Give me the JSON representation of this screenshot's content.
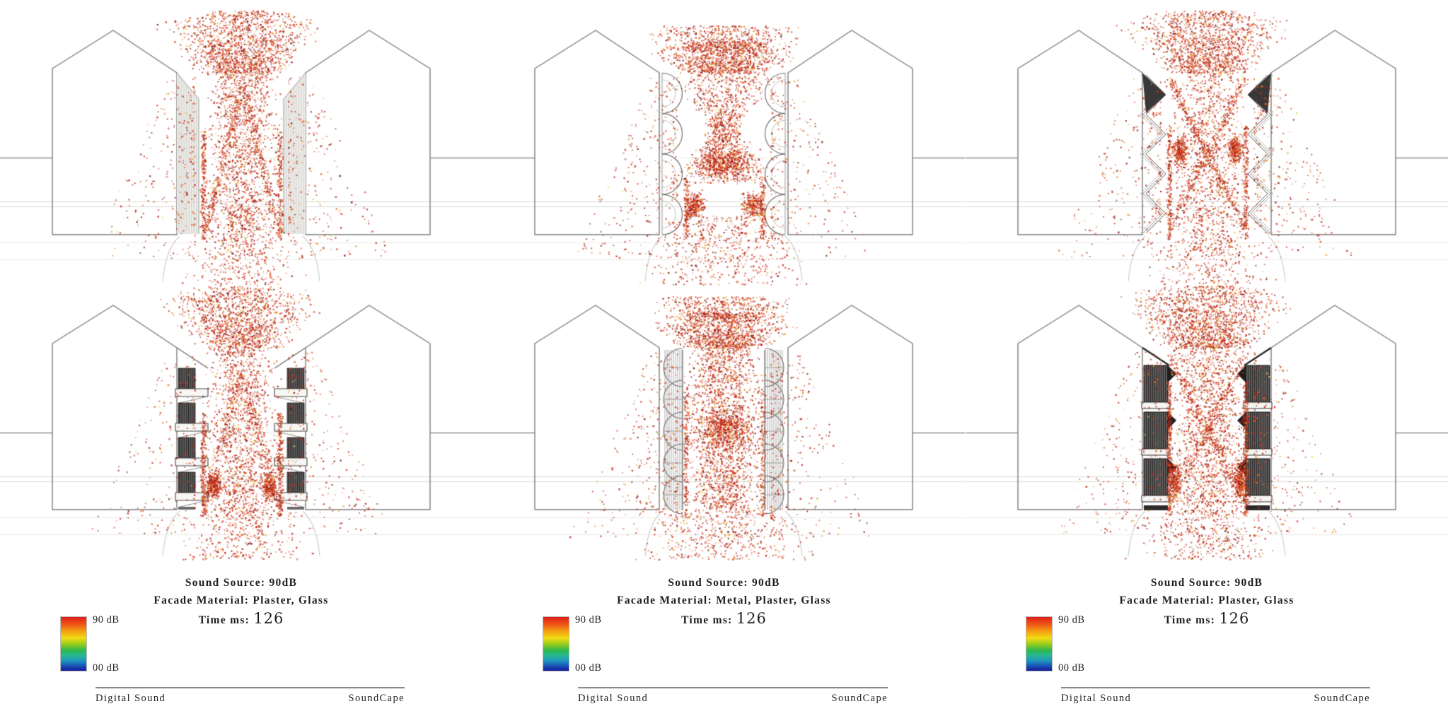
{
  "title": "SoundCape acoustic facade simulation grid",
  "legend_gradient": [
    [
      "#e01f17",
      0
    ],
    [
      "#ee5317",
      13
    ],
    [
      "#f4a112",
      27
    ],
    [
      "#f2dc12",
      39
    ],
    [
      "#93cc1e",
      51
    ],
    [
      "#30b84c",
      62
    ],
    [
      "#28b795",
      72
    ],
    [
      "#1e93c0",
      82
    ],
    [
      "#1a4bb4",
      92
    ],
    [
      "#151d96",
      100
    ]
  ],
  "particle_palette": [
    [
      "#c4261a",
      26
    ],
    [
      "#dd3a1c",
      22
    ],
    [
      "#a32115",
      14
    ],
    [
      "#8a1a10",
      9
    ],
    [
      "#de5a1e",
      10
    ],
    [
      "#e2831d",
      6
    ],
    [
      "#edab2a",
      4
    ],
    [
      "#6e130c",
      4
    ],
    [
      "#e8cf54",
      2
    ],
    [
      "#d94b2b",
      3
    ]
  ],
  "columns": [
    {
      "caption": {
        "sound_source": "Sound Source: 90dB",
        "facade_material": "Facade Material: Plaster, Glass",
        "time_label": "Time ms:",
        "time_value": "126"
      },
      "legend": {
        "top": "90 dB",
        "bottom": "00 dB"
      },
      "footer": {
        "left": "Digital Sound",
        "right": "SoundCape"
      },
      "panels": [
        {
          "facade": "glass",
          "seed": 101,
          "ops": [
            [
              "fan",
              1500,
              148,
              14,
              103,
              64
            ],
            [
              "col",
              1400,
              103,
              332,
              0.12
            ],
            [
              "lam",
              520,
              120,
              332,
              9
            ],
            [
              "streak",
              400,
              185,
              338
            ],
            [
              "side",
              520,
              108,
              365,
              150
            ],
            [
              "below",
              360,
              332,
              402,
              58,
              108
            ]
          ]
        },
        {
          "facade": "balcony",
          "seed": 104,
          "ops": [
            [
              "fan",
              1350,
              148,
              14,
              103,
              64
            ],
            [
              "col",
              1250,
              103,
              332,
              0.1
            ],
            [
              "lam",
              480,
              135,
              330,
              10
            ],
            [
              "streak",
              520,
              195,
              340
            ],
            [
              "blob",
              260,
              302,
              298,
              15,
              26
            ],
            [
              "blob",
              260,
              380,
              298,
              15,
              26
            ],
            [
              "side",
              500,
              108,
              365,
              150
            ],
            [
              "below",
              400,
              332,
              402,
              62,
              112
            ]
          ]
        }
      ]
    },
    {
      "caption": {
        "sound_source": "Sound Source: 90dB",
        "facade_material": "Facade Material: Metal, Plaster, Glass",
        "time_label": "Time ms:",
        "time_value": "126"
      },
      "legend": {
        "top": "90 dB",
        "bottom": "00 dB"
      },
      "footer": {
        "left": "Digital Sound",
        "right": "SoundCape"
      },
      "panels": [
        {
          "facade": "scallop",
          "seed": 102,
          "ops": [
            [
              "rim",
              520,
              108,
              36,
              72
            ],
            [
              "fan",
              1000,
              150,
              58,
              103,
              64
            ],
            [
              "hour",
              1100,
              103,
              258,
              26,
              92,
              182
            ],
            [
              "blob",
              520,
              341,
              232,
              60,
              30
            ],
            [
              "blob",
              260,
              300,
              290,
              20,
              26
            ],
            [
              "blob",
              260,
              382,
              290,
              20,
              26
            ],
            [
              "streak",
              260,
              250,
              338
            ],
            [
              "side",
              540,
              108,
              365,
              150
            ],
            [
              "below",
              520,
              305,
              402,
              82,
              140
            ]
          ]
        },
        {
          "facade": "sail",
          "seed": 105,
          "ops": [
            [
              "rim",
              430,
              100,
              30,
              60
            ],
            [
              "fan",
              1150,
              140,
              52,
              103,
              64
            ],
            [
              "col",
              1900,
              103,
              330,
              0.18
            ],
            [
              "blob",
              520,
              341,
              218,
              52,
              38
            ],
            [
              "streak",
              320,
              160,
              340
            ],
            [
              "side",
              600,
              108,
              370,
              155
            ],
            [
              "below",
              500,
              330,
              402,
              88,
              148
            ]
          ]
        }
      ]
    },
    {
      "caption": {
        "sound_source": "Sound Source: 90dB",
        "facade_material": "Facade Material: Plaster, Glass",
        "time_label": "Time ms:",
        "time_value": "126"
      },
      "legend": {
        "top": "90 dB",
        "bottom": "00 dB"
      },
      "footer": {
        "left": "Digital Sound",
        "right": "SoundCape"
      },
      "panels": [
        {
          "facade": "chevron",
          "seed": 103,
          "ops": [
            [
              "fan",
              1450,
              158,
              14,
              103,
              64
            ],
            [
              "x",
              720,
              112,
              322,
              10
            ],
            [
              "col",
              950,
              103,
              332,
              0.08
            ],
            [
              "blob",
              280,
              302,
              212,
              13,
              30
            ],
            [
              "blob",
              280,
              380,
              212,
              13,
              30
            ],
            [
              "streak",
              430,
              175,
              338
            ],
            [
              "side",
              540,
              108,
              365,
              152
            ],
            [
              "below",
              340,
              332,
              402,
              58,
              108
            ]
          ]
        },
        {
          "facade": "louver",
          "seed": 106,
          "ops": [
            [
              "fan",
              1550,
              162,
              14,
              103,
              64
            ],
            [
              "x",
              620,
              115,
              322,
              11
            ],
            [
              "col",
              1350,
              103,
              332,
              0.22
            ],
            [
              "streak",
              620,
              150,
              340
            ],
            [
              "blob",
              280,
              295,
              288,
              12,
              36
            ],
            [
              "blob",
              280,
              387,
              288,
              12,
              36
            ],
            [
              "side",
              540,
              108,
              365,
              150
            ],
            [
              "below",
              420,
              332,
              402,
              68,
              118
            ]
          ]
        }
      ]
    }
  ]
}
